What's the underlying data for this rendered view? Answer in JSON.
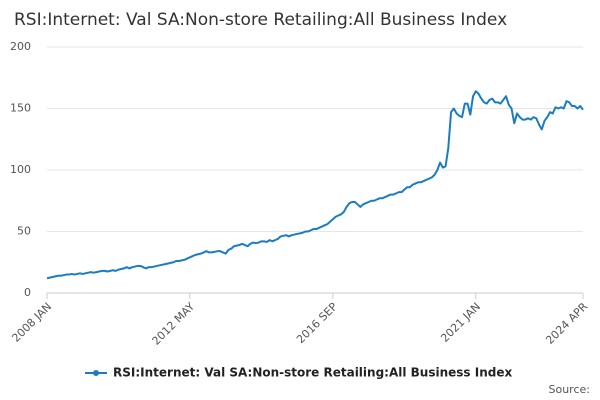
{
  "chart_data": {
    "type": "line",
    "title": "RSI:Internet: Val SA:Non-store Retailing:All Business Index",
    "source": "Source:",
    "categories": [
      "2008 JAN",
      null,
      null,
      null,
      null,
      null,
      null,
      null,
      null,
      null,
      null,
      null,
      null,
      null,
      null,
      null,
      null,
      null,
      null,
      null,
      null,
      null,
      null,
      null,
      null,
      null,
      null,
      null,
      null,
      null,
      null,
      null,
      null,
      null,
      null,
      null,
      null,
      null,
      null,
      null,
      null,
      null,
      null,
      null,
      null,
      null,
      null,
      null,
      null,
      null,
      null,
      null,
      "2012 MAY",
      null,
      null,
      null,
      null,
      null,
      null,
      null,
      null,
      null,
      null,
      null,
      null,
      null,
      null,
      null,
      null,
      null,
      null,
      null,
      null,
      null,
      null,
      null,
      null,
      null,
      null,
      null,
      null,
      null,
      null,
      null,
      null,
      null,
      null,
      null,
      null,
      null,
      null,
      null,
      null,
      null,
      null,
      null,
      null,
      null,
      null,
      null,
      null,
      null,
      null,
      null,
      "2016 SEP",
      null,
      null,
      null,
      null,
      null,
      null,
      null,
      null,
      null,
      null,
      null,
      null,
      null,
      null,
      null,
      null,
      null,
      null,
      null,
      null,
      null,
      null,
      null,
      null,
      null,
      null,
      null,
      null,
      null,
      null,
      null,
      null,
      null,
      null,
      null,
      null,
      null,
      null,
      null,
      null,
      null,
      null,
      null,
      null,
      null,
      null,
      null,
      null,
      null,
      null,
      null,
      "2021 JAN",
      null,
      null,
      null,
      null,
      null,
      null,
      null,
      null,
      null,
      null,
      null,
      null,
      null,
      null,
      null,
      null,
      null,
      null,
      null,
      null,
      null,
      null,
      null,
      null,
      null,
      null,
      null,
      null,
      null,
      null,
      null,
      null,
      null,
      null,
      null,
      null,
      null,
      null,
      "2024 APR"
    ],
    "series": [
      {
        "name": "RSI:Internet: Val SA:Non-store Retailing:All Business Index",
        "color": "#1a7dc0",
        "values": [
          12,
          12.5,
          13,
          13.5,
          14,
          14,
          14.5,
          15,
          15,
          15.5,
          15,
          15.5,
          16,
          15.5,
          16,
          16.5,
          17,
          16.5,
          17,
          17.5,
          18,
          18,
          17.5,
          18,
          18.5,
          18,
          19,
          19.5,
          20,
          21,
          20,
          21,
          21.5,
          22,
          22,
          21,
          20,
          21,
          21,
          21.5,
          22,
          22.5,
          23,
          23.5,
          24,
          24.5,
          25,
          26,
          26,
          26.5,
          27,
          28,
          29,
          30,
          31,
          31.5,
          32,
          33,
          34,
          33,
          33,
          33.5,
          34,
          34,
          33,
          32,
          35,
          36,
          38,
          38.5,
          39,
          40,
          39,
          38,
          40,
          41,
          40.5,
          41,
          42,
          42,
          41.5,
          43,
          42,
          43,
          44,
          46,
          46.5,
          47,
          46,
          47,
          47.5,
          48,
          48.5,
          49,
          50,
          50,
          51,
          52,
          52,
          53,
          54,
          55,
          56,
          58,
          60,
          62,
          63,
          64,
          66,
          70,
          73,
          74,
          74,
          72,
          70,
          72,
          73,
          74,
          75,
          75,
          76,
          77,
          77,
          78,
          79,
          80,
          80,
          81,
          82,
          82,
          84,
          86,
          86,
          88,
          89,
          90,
          90,
          91,
          92,
          93,
          94,
          96,
          100,
          106,
          102,
          103,
          118,
          147,
          150,
          146,
          144,
          143,
          154,
          154,
          145,
          160,
          164,
          162,
          158,
          155,
          154,
          157,
          158,
          155,
          155,
          154,
          157,
          160,
          153,
          150,
          138,
          146,
          143,
          141,
          141,
          142,
          141,
          143,
          142,
          137,
          133,
          140,
          143,
          147,
          146,
          151,
          150,
          151,
          150,
          156,
          155,
          152,
          152,
          150,
          152,
          149
        ]
      }
    ],
    "ylim": [
      0,
      200
    ],
    "yticks": [
      0,
      50,
      100,
      150,
      200
    ],
    "grid": true
  }
}
